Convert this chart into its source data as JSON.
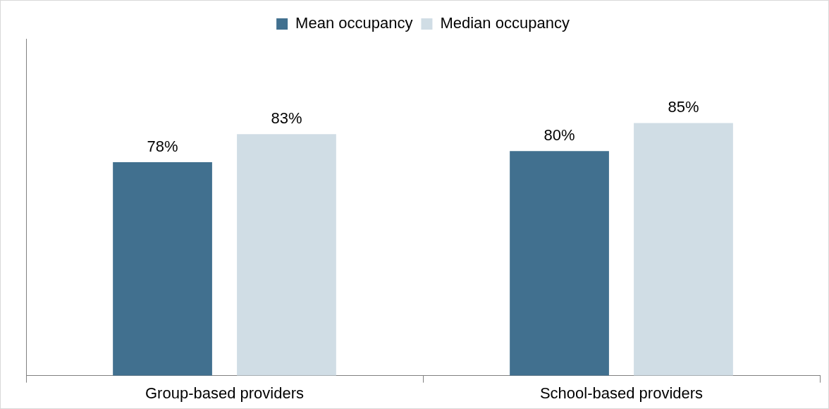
{
  "chart_data": {
    "type": "bar",
    "categories": [
      "Group-based providers",
      "School-based providers"
    ],
    "series": [
      {
        "name": "Mean occupancy",
        "color": "#41708f",
        "values": [
          78,
          80
        ],
        "value_labels": [
          "78%",
          "80%"
        ]
      },
      {
        "name": "Median occupancy",
        "color": "#d0dde5",
        "values": [
          83,
          85
        ],
        "value_labels": [
          "83%",
          "85%"
        ]
      }
    ],
    "ylim": [
      40,
      100
    ],
    "tick_labels": "x",
    "legend": "top",
    "grid": false
  }
}
